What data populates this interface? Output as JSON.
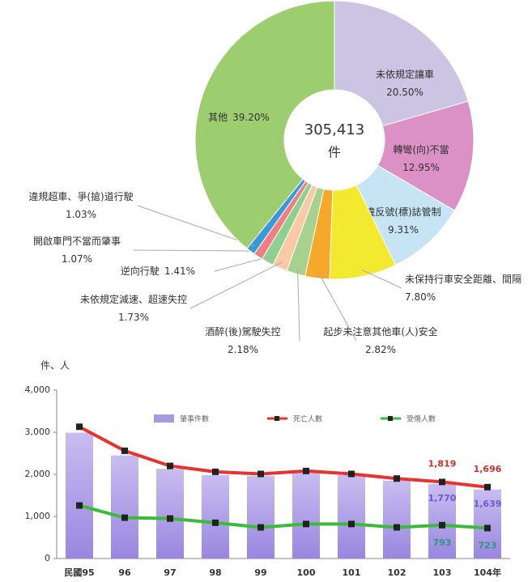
{
  "chart_data": [
    {
      "type": "pie",
      "center_value": 305413,
      "center_value_label": "305,413",
      "center_unit": "件",
      "categories": [
        "未依規定讓車",
        "轉彎(向)不當",
        "違反號(標)誌管制",
        "未保持行車安全距離、間隔",
        "起步未注意其他車(人)安全",
        "酒醉(後)駕駛失控",
        "未依規定減速、超速失控",
        "逆向行駛",
        "開啟車門不當而肇事",
        "違規超車、爭(搶)道行駛",
        "其他"
      ],
      "values": [
        20.5,
        12.95,
        9.31,
        7.8,
        2.82,
        2.18,
        1.73,
        1.41,
        1.07,
        1.03,
        39.2
      ],
      "value_labels": [
        "20.50%",
        "12.95%",
        "9.31%",
        "7.80%",
        "2.82%",
        "2.18%",
        "1.73%",
        "1.41%",
        "1.07%",
        "1.03%",
        "39.20%"
      ],
      "colors": [
        "#cbc4e2",
        "#db90c6",
        "#c6e4f4",
        "#f3e92e",
        "#f5a82a",
        "#a9d18e",
        "#f8caa6",
        "#8fcf8f",
        "#ef8080",
        "#3a9ad9",
        "#9ccd6f"
      ]
    },
    {
      "type": "bar_line",
      "y_label": "件、人",
      "categories": [
        "民國95",
        "96",
        "97",
        "98",
        "99",
        "100",
        "101",
        "102",
        "103",
        "104年"
      ],
      "ylim": [
        0,
        4000
      ],
      "yticks": [
        0,
        {
          "value": 1000,
          "label": "1,000"
        },
        {
          "value": 2000,
          "label": "2,000"
        },
        {
          "value": 3000,
          "label": "3,000"
        },
        {
          "value": 4000,
          "label": "4,000"
        }
      ],
      "series": [
        {
          "name": "肇事件數",
          "kind": "bar",
          "color": "#a99ae0",
          "values": [
            2990,
            2450,
            2130,
            1980,
            1960,
            2060,
            1980,
            1850,
            1770,
            1639
          ],
          "value_labels": [
            null,
            null,
            null,
            null,
            null,
            null,
            null,
            null,
            "1,770",
            "1,639"
          ]
        },
        {
          "name": "死亡人數",
          "kind": "line",
          "color": "#e8322d",
          "values": [
            3130,
            2560,
            2200,
            2060,
            2010,
            2080,
            2010,
            1900,
            1819,
            1696
          ],
          "value_labels": [
            null,
            null,
            null,
            null,
            null,
            null,
            null,
            null,
            "1,819",
            "1,696"
          ]
        },
        {
          "name": "受傷人數",
          "kind": "line",
          "color": "#3cba3c",
          "values": [
            1260,
            970,
            950,
            850,
            740,
            820,
            820,
            740,
            793,
            723
          ],
          "value_labels": [
            null,
            null,
            null,
            null,
            null,
            null,
            null,
            null,
            "793",
            "723"
          ]
        }
      ]
    }
  ]
}
